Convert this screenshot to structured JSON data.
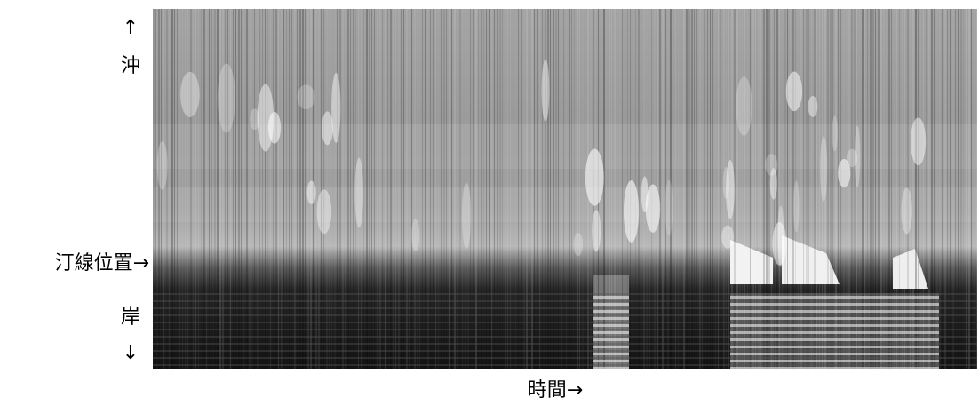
{
  "labels": {
    "up_arrow": "↑",
    "offshore": "沖",
    "shoreline": "汀線位置→",
    "shore": "岸",
    "down_arrow": "↓",
    "time_axis": "時間→"
  }
}
